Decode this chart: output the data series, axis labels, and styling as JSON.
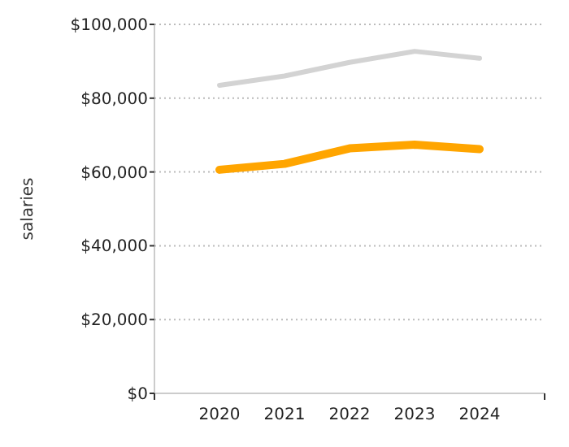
{
  "chart_data": {
    "type": "line",
    "ylabel": "salaries",
    "categories": [
      "2020",
      "2021",
      "2022",
      "2023",
      "2024"
    ],
    "series": [
      {
        "color": "#d3d3d3",
        "values": [
          83500,
          86000,
          89700,
          92700,
          90800
        ]
      },
      {
        "color": "#ffa500",
        "values": [
          60600,
          62200,
          66400,
          67400,
          66200
        ]
      }
    ],
    "ylim": [
      0,
      100000
    ],
    "yticks": [
      {
        "value": 0,
        "label": "$0"
      },
      {
        "value": 20000,
        "label": "$20,000"
      },
      {
        "value": 40000,
        "label": "$40,000"
      },
      {
        "value": 60000,
        "label": "$60,000"
      },
      {
        "value": 80000,
        "label": "$80,000"
      },
      {
        "value": 100000,
        "label": "$100,000"
      }
    ],
    "grid": "y",
    "marker": "none",
    "line_style": "solid"
  }
}
